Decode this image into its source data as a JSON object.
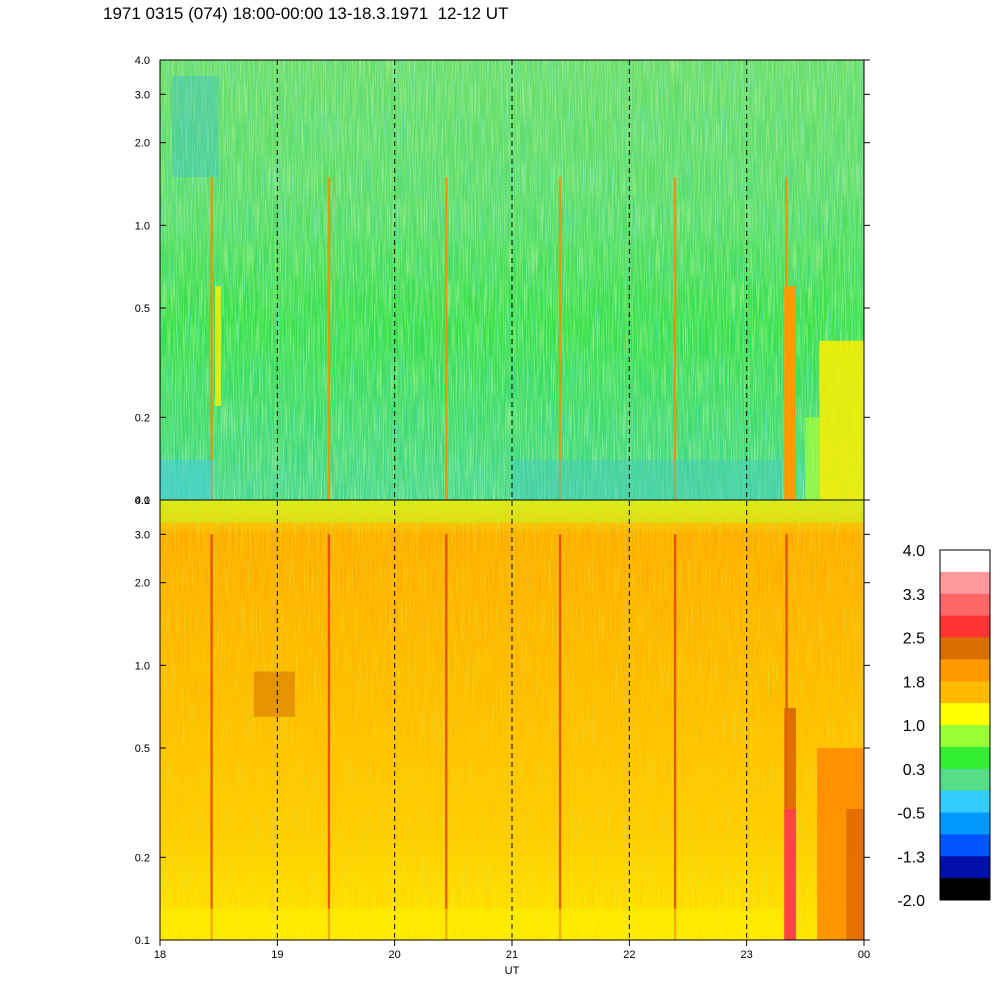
{
  "title": "1971 0315 (074) 18:00-00:00 13-18.3.1971  12-12 UT",
  "chart_data": {
    "type": "heatmap",
    "title": "1971 0315 (074) 18:00-00:00 13-18.3.1971  12-12 UT",
    "xlabel": "UT",
    "x_ticks": [
      "18",
      "19",
      "20",
      "21",
      "22",
      "23",
      "00"
    ],
    "x_range_hours": [
      18,
      24
    ],
    "dashed_vertical_lines_at_hours": [
      19,
      20,
      21,
      22,
      23
    ],
    "y_scale": "log",
    "y_range": [
      0.1,
      4.0
    ],
    "y_ticks": [
      "0.1",
      "0.2",
      "0.5",
      "1.0",
      "2.0",
      "3.0",
      "4.0"
    ],
    "y_tick_values": [
      0.1,
      0.2,
      0.5,
      1.0,
      2.0,
      3.0,
      4.0
    ],
    "panels": [
      {
        "name": "upper",
        "dominant_levels": "green to cyan (about -0.5 to 0.5)",
        "notable_features": [
          "orange band near 23:20 UT below 0.6",
          "yellow region 23:40-00:00 UT below 0.4"
        ]
      },
      {
        "name": "lower",
        "dominant_levels": "yellow to orange (about 1.0 to 2.0)",
        "notable_features": [
          "red/orange band near 23:20 UT below 0.3",
          "orange region 23:40-00:00 UT"
        ]
      }
    ],
    "colorbar": {
      "labels": [
        "4.0",
        "3.3",
        "2.5",
        "1.8",
        "1.0",
        "0.3",
        "-0.5",
        "-1.3",
        "-2.0"
      ],
      "colors": [
        "#ffffff",
        "#ff9999",
        "#ff6666",
        "#ff3333",
        "#d86f00",
        "#ff9900",
        "#ffbb00",
        "#ffff00",
        "#99ff33",
        "#33ee33",
        "#55dd88",
        "#33ccff",
        "#0099ff",
        "#0055ff",
        "#0011aa",
        "#000000"
      ]
    }
  }
}
